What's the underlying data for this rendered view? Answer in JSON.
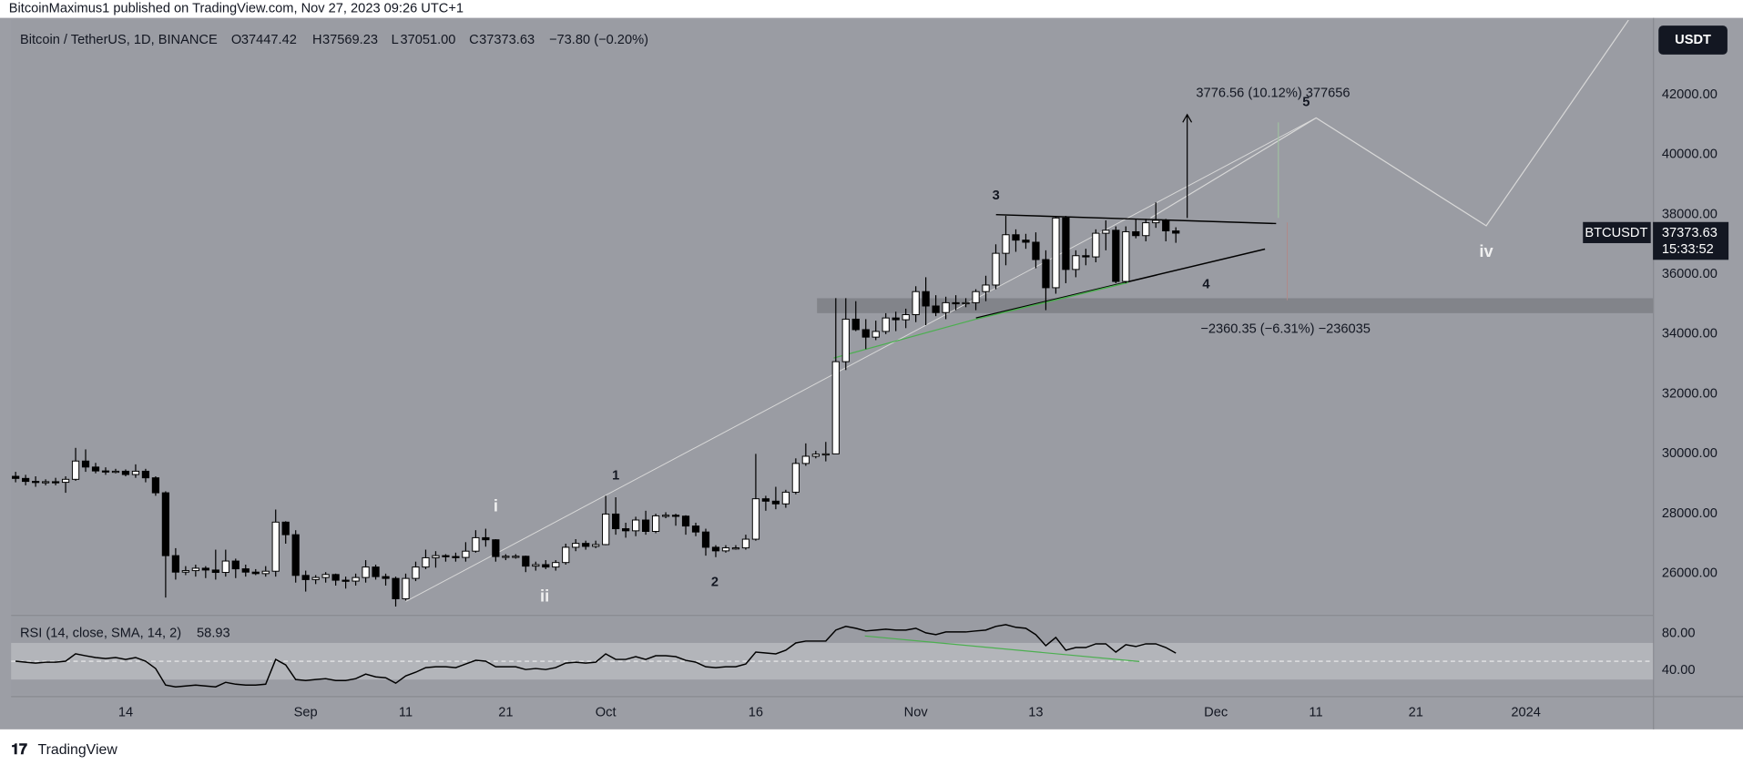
{
  "publisher": "BitcoinMaximus1 published on TradingView.com, Nov 27, 2023 09:26 UTC+1",
  "footer": "TradingView",
  "currency_button": "USDT",
  "chart_data": {
    "type": "candlestick",
    "title": "Bitcoin / TetherUS, 1D, BINANCE",
    "header": {
      "o_label": "O",
      "o": "37447.42",
      "h_label": "H",
      "h": "37569.23",
      "l_label": "L",
      "l": "37051.00",
      "c_label": "C",
      "c": "37373.63",
      "change": "−73.80 (−0.20%)"
    },
    "up_color": "#ffffff",
    "down_color": "#000000",
    "x": [
      2,
      3,
      4,
      5,
      6,
      7,
      8,
      9,
      10,
      11,
      12,
      13,
      14,
      15,
      16,
      17,
      18,
      19,
      20,
      21,
      22,
      23,
      24,
      25,
      26,
      27,
      28,
      29,
      30,
      31,
      32,
      33,
      34,
      35,
      36,
      37,
      38,
      39,
      40,
      41,
      42,
      43,
      44,
      45,
      46,
      47,
      48,
      49,
      50,
      51,
      52,
      53,
      54,
      55,
      56,
      57,
      58,
      59,
      60,
      61,
      62,
      63,
      64,
      65,
      66,
      67,
      68,
      69,
      70,
      71,
      72,
      73,
      74,
      75,
      76,
      77,
      78,
      79,
      80,
      81,
      82,
      83,
      84,
      85,
      86,
      87,
      88,
      89,
      90,
      91,
      92,
      93,
      94,
      95,
      96,
      97,
      98,
      99,
      100,
      101,
      102,
      103,
      104,
      105,
      106,
      107,
      108,
      109,
      110,
      111,
      112,
      113,
      114,
      115,
      116,
      117,
      118
    ],
    "candles": [
      [
        29250,
        29400,
        29050,
        29180
      ],
      [
        29180,
        29300,
        28950,
        29080
      ],
      [
        29080,
        29250,
        28900,
        29050
      ],
      [
        29050,
        29150,
        28950,
        29070
      ],
      [
        29070,
        29200,
        28950,
        29050
      ],
      [
        29050,
        29250,
        28700,
        29150
      ],
      [
        29150,
        30200,
        29100,
        29760
      ],
      [
        29760,
        30150,
        29400,
        29560
      ],
      [
        29560,
        29700,
        29350,
        29430
      ],
      [
        29430,
        29550,
        29300,
        29400
      ],
      [
        29400,
        29500,
        29350,
        29420
      ],
      [
        29420,
        29480,
        29250,
        29310
      ],
      [
        29310,
        29650,
        29200,
        29420
      ],
      [
        29420,
        29500,
        29050,
        29200
      ],
      [
        29200,
        29250,
        28600,
        28700
      ],
      [
        28700,
        28750,
        25200,
        26600
      ],
      [
        26600,
        26850,
        25800,
        26050
      ],
      [
        26050,
        26250,
        25950,
        26100
      ],
      [
        26100,
        26300,
        25900,
        26180
      ],
      [
        26180,
        26250,
        25850,
        26120
      ],
      [
        26120,
        26800,
        25800,
        26040
      ],
      [
        26040,
        26800,
        25900,
        26420
      ],
      [
        26420,
        26500,
        25850,
        26160
      ],
      [
        26160,
        26300,
        25900,
        26050
      ],
      [
        26050,
        26150,
        25950,
        26000
      ],
      [
        26000,
        26250,
        25900,
        26080
      ],
      [
        26080,
        28140,
        25900,
        27720
      ],
      [
        27720,
        27750,
        27000,
        27300
      ],
      [
        27300,
        27450,
        25700,
        25940
      ],
      [
        25940,
        26100,
        25400,
        25800
      ],
      [
        25800,
        25950,
        25650,
        25870
      ],
      [
        25870,
        26050,
        25700,
        25970
      ],
      [
        25970,
        26000,
        25600,
        25780
      ],
      [
        25780,
        25900,
        25500,
        25750
      ],
      [
        25750,
        26000,
        25600,
        25870
      ],
      [
        25870,
        26450,
        25700,
        26220
      ],
      [
        26220,
        26300,
        25800,
        25900
      ],
      [
        25900,
        26000,
        25600,
        25840
      ],
      [
        25840,
        25900,
        24900,
        25160
      ],
      [
        25160,
        26000,
        25100,
        25840
      ],
      [
        25840,
        26400,
        25750,
        26220
      ],
      [
        26220,
        26800,
        26150,
        26530
      ],
      [
        26530,
        26750,
        26200,
        26600
      ],
      [
        26600,
        26650,
        26400,
        26570
      ],
      [
        26570,
        26700,
        26400,
        26540
      ],
      [
        26540,
        27050,
        26400,
        26750
      ],
      [
        26750,
        27450,
        26700,
        27200
      ],
      [
        27200,
        27500,
        26900,
        27130
      ],
      [
        27130,
        27150,
        26400,
        26570
      ],
      [
        26570,
        26650,
        26450,
        26580
      ],
      [
        26580,
        26650,
        26500,
        26580
      ],
      [
        26580,
        26600,
        26050,
        26250
      ],
      [
        26250,
        26400,
        26100,
        26300
      ],
      [
        26300,
        26450,
        26150,
        26220
      ],
      [
        26220,
        26450,
        26100,
        26370
      ],
      [
        26370,
        27000,
        26300,
        26880
      ],
      [
        26880,
        27150,
        26750,
        27010
      ],
      [
        27010,
        27100,
        26800,
        26910
      ],
      [
        26910,
        27100,
        26850,
        26970
      ],
      [
        26970,
        28600,
        26950,
        27990
      ],
      [
        27990,
        28550,
        27300,
        27500
      ],
      [
        27500,
        27700,
        27200,
        27430
      ],
      [
        27430,
        27900,
        27250,
        27790
      ],
      [
        27790,
        28100,
        27300,
        27410
      ],
      [
        27410,
        28000,
        27350,
        27930
      ],
      [
        27930,
        28050,
        27850,
        27950
      ],
      [
        27950,
        28000,
        27600,
        27920
      ],
      [
        27920,
        27950,
        27300,
        27590
      ],
      [
        27590,
        27700,
        27250,
        27390
      ],
      [
        27390,
        27500,
        26600,
        26880
      ],
      [
        26880,
        26950,
        26550,
        26760
      ],
      [
        26760,
        26950,
        26700,
        26860
      ],
      [
        26860,
        26950,
        26800,
        26860
      ],
      [
        26860,
        27300,
        26800,
        27150
      ],
      [
        27150,
        30000,
        27100,
        28500
      ],
      [
        28500,
        28600,
        28100,
        28420
      ],
      [
        28420,
        28900,
        28150,
        28330
      ],
      [
        28330,
        28800,
        28200,
        28720
      ],
      [
        28720,
        29850,
        28650,
        29680
      ],
      [
        29680,
        30350,
        29600,
        29920
      ],
      [
        29920,
        30100,
        29850,
        29990
      ],
      [
        29990,
        30400,
        29750,
        30000
      ],
      [
        30000,
        35200,
        30000,
        33080
      ],
      [
        33080,
        35200,
        32800,
        34500
      ],
      [
        34500,
        35100,
        34100,
        34150
      ],
      [
        34150,
        34500,
        33500,
        33900
      ],
      [
        33900,
        34450,
        33800,
        34090
      ],
      [
        34090,
        34700,
        34000,
        34540
      ],
      [
        34540,
        34750,
        34100,
        34480
      ],
      [
        34480,
        34850,
        34200,
        34650
      ],
      [
        34650,
        35600,
        34400,
        35420
      ],
      [
        35420,
        35900,
        34300,
        34940
      ],
      [
        34940,
        35300,
        34600,
        34720
      ],
      [
        34720,
        35250,
        34500,
        35050
      ],
      [
        35050,
        35300,
        34800,
        35030
      ],
      [
        35030,
        35200,
        34900,
        35050
      ],
      [
        35050,
        35500,
        34800,
        35420
      ],
      [
        35420,
        35950,
        35100,
        35640
      ],
      [
        35640,
        37000,
        35500,
        36700
      ],
      [
        36700,
        37950,
        36300,
        37320
      ],
      [
        37320,
        37500,
        36750,
        37140
      ],
      [
        37140,
        37350,
        36850,
        37070
      ],
      [
        37070,
        37400,
        36200,
        36490
      ],
      [
        36490,
        36800,
        34800,
        35550
      ],
      [
        35550,
        37950,
        35350,
        37880
      ],
      [
        37880,
        37950,
        35700,
        36160
      ],
      [
        36160,
        36800,
        35900,
        36620
      ],
      [
        36620,
        36850,
        36300,
        36580
      ],
      [
        36580,
        37500,
        36400,
        37370
      ],
      [
        37370,
        37800,
        36800,
        37470
      ],
      [
        37470,
        37600,
        35700,
        35760
      ],
      [
        35760,
        37600,
        35700,
        37420
      ],
      [
        37420,
        37850,
        37200,
        37290
      ],
      [
        37290,
        37850,
        37100,
        37720
      ],
      [
        37720,
        38400,
        37550,
        37800
      ],
      [
        37800,
        37850,
        37100,
        37450
      ],
      [
        37447.42,
        37569.23,
        37051.0,
        37373.63
      ]
    ],
    "xlim": [
      1.55,
      165.7
    ],
    "xticks": [
      {
        "value": 13,
        "label": "14"
      },
      {
        "value": 31,
        "label": "Sep"
      },
      {
        "value": 41,
        "label": "11"
      },
      {
        "value": 51,
        "label": "21"
      },
      {
        "value": 61,
        "label": "Oct"
      },
      {
        "value": 76,
        "label": "16"
      },
      {
        "value": 92,
        "label": "Nov"
      },
      {
        "value": 104,
        "label": "13"
      },
      {
        "value": 122,
        "label": "Dec"
      },
      {
        "value": 132,
        "label": "11"
      },
      {
        "value": 142,
        "label": "21"
      },
      {
        "value": 153,
        "label": "2024"
      }
    ],
    "ylim": [
      24660,
      44490
    ],
    "yticks": [
      {
        "value": 26000,
        "label": "26000.00"
      },
      {
        "value": 28000,
        "label": "28000.00"
      },
      {
        "value": 30000,
        "label": "30000.00"
      },
      {
        "value": 32000,
        "label": "32000.00"
      },
      {
        "value": 34000,
        "label": "34000.00"
      },
      {
        "value": 36000,
        "label": "36000.00"
      },
      {
        "value": 38000,
        "label": "38000.00"
      },
      {
        "value": 40000,
        "label": "40000.00"
      },
      {
        "value": 42000,
        "label": "42000.00"
      }
    ],
    "grid": false,
    "support_zone": [
      34700,
      35200
    ],
    "last_price": {
      "symbol": "BTCUSDT",
      "countdown": "15:33:52"
    },
    "annotations": [
      "3",
      "1",
      "2",
      "i",
      "ii",
      "4",
      "5",
      "iv",
      "3776.56 (10.12%) 377656",
      "−2360.35 (−6.31%) −236035"
    ],
    "rsi": {
      "label": "RSI (14, close, SMA, 14, 2)",
      "color": "#000000",
      "values": [
        50,
        49,
        48,
        49,
        49,
        50,
        58,
        56,
        54,
        53,
        54,
        52,
        54,
        50,
        42,
        24,
        22,
        23,
        24,
        23,
        22,
        27,
        25,
        24,
        24,
        25,
        52,
        46,
        30,
        29,
        30,
        31,
        29,
        29,
        31,
        36,
        33,
        32,
        26,
        34,
        38,
        43,
        44,
        44,
        43,
        47,
        51,
        50,
        44,
        44,
        44,
        41,
        42,
        41,
        43,
        48,
        49,
        48,
        49,
        58,
        52,
        52,
        55,
        52,
        56,
        56,
        55,
        51,
        49,
        44,
        43,
        44,
        44,
        47,
        60,
        59,
        58,
        62,
        70,
        72,
        72,
        72,
        84,
        88,
        86,
        83,
        84,
        85,
        84,
        84,
        86,
        81,
        79,
        82,
        82,
        82,
        83,
        84,
        88,
        90,
        87,
        86,
        79,
        67,
        76,
        62,
        65,
        65,
        69,
        69,
        60,
        68,
        66,
        69,
        69,
        65,
        58.93
      ],
      "ylim": [
        13.3,
        98.2
      ],
      "yticks": [
        {
          "value": 40,
          "label": "40.00"
        },
        {
          "value": 80,
          "label": "80.00"
        }
      ],
      "band": [
        30,
        70
      ],
      "midline": 50
    }
  }
}
